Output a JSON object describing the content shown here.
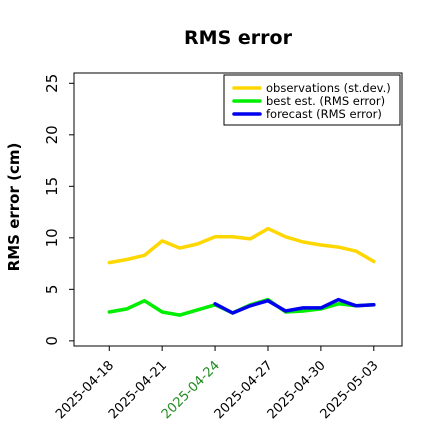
{
  "chart_data": {
    "type": "line",
    "title": "RMS error",
    "xlabel": "",
    "ylabel": "RMS error (cm)",
    "ylim": [
      -0.5,
      26
    ],
    "yticks": [
      0,
      5,
      10,
      15,
      20,
      25
    ],
    "x": [
      "2025-04-18",
      "2025-04-19",
      "2025-04-20",
      "2025-04-21",
      "2025-04-22",
      "2025-04-23",
      "2025-04-24",
      "2025-04-25",
      "2025-04-26",
      "2025-04-27",
      "2025-04-28",
      "2025-04-29",
      "2025-04-30",
      "2025-05-01",
      "2025-05-02",
      "2025-05-03"
    ],
    "xlim": [
      "2025-04-16",
      "2025-05-04.6"
    ],
    "xtick_labels": [
      {
        "date": "2025-04-18",
        "label": "2025-04-18",
        "color": "#000000"
      },
      {
        "date": "2025-04-21",
        "label": "2025-04-21",
        "color": "#000000"
      },
      {
        "date": "2025-04-24",
        "label": "2025-04-24",
        "color": "#228B22"
      },
      {
        "date": "2025-04-27",
        "label": "2025-04-27",
        "color": "#000000"
      },
      {
        "date": "2025-04-30",
        "label": "2025-04-30",
        "color": "#000000"
      },
      {
        "date": "2025-05-03",
        "label": "2025-05-03",
        "color": "#000000"
      }
    ],
    "series": [
      {
        "name": "observations (st.dev.)",
        "color": "#FFD700",
        "x": [
          "2025-04-18",
          "2025-04-19",
          "2025-04-20",
          "2025-04-21",
          "2025-04-22",
          "2025-04-23",
          "2025-04-24",
          "2025-04-25",
          "2025-04-26",
          "2025-04-27",
          "2025-04-28",
          "2025-04-29",
          "2025-04-30",
          "2025-05-01",
          "2025-05-02",
          "2025-05-03"
        ],
        "values": [
          7.6,
          7.9,
          8.3,
          9.7,
          9.0,
          9.4,
          10.1,
          10.1,
          9.9,
          10.9,
          10.1,
          9.6,
          9.3,
          9.1,
          8.7,
          7.7
        ]
      },
      {
        "name": "best est. (RMS error)",
        "color": "#00EE00",
        "x": [
          "2025-04-18",
          "2025-04-19",
          "2025-04-20",
          "2025-04-21",
          "2025-04-22",
          "2025-04-23",
          "2025-04-24",
          "2025-04-25",
          "2025-04-26",
          "2025-04-27",
          "2025-04-28",
          "2025-04-29",
          "2025-04-30",
          "2025-05-01",
          "2025-05-02",
          "2025-05-03"
        ],
        "values": [
          2.8,
          3.1,
          3.9,
          2.8,
          2.5,
          3.0,
          3.5,
          2.7,
          3.5,
          4.0,
          2.8,
          2.9,
          3.1,
          3.6,
          3.4,
          3.5
        ]
      },
      {
        "name": "forecast (RMS error)",
        "color": "#0000EE",
        "x": [
          "2025-04-24",
          "2025-04-25",
          "2025-04-26",
          "2025-04-27",
          "2025-04-28",
          "2025-04-29",
          "2025-04-30",
          "2025-05-01",
          "2025-05-02",
          "2025-05-03"
        ],
        "values": [
          3.6,
          2.7,
          3.4,
          3.9,
          2.9,
          3.2,
          3.2,
          4.0,
          3.4,
          3.5
        ]
      }
    ],
    "grid": false,
    "legend": "top-right"
  }
}
